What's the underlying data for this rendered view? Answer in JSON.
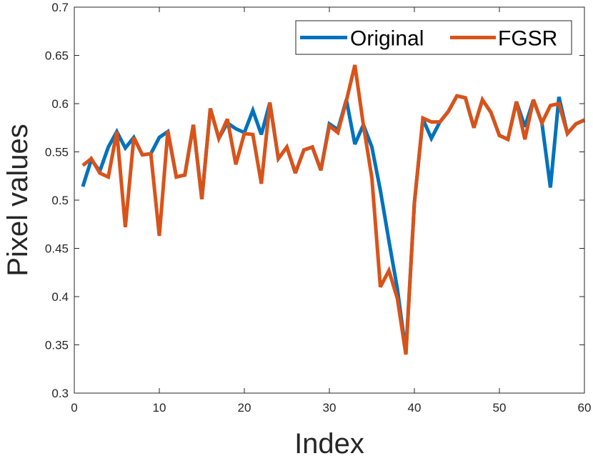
{
  "chart_data": {
    "type": "line",
    "title": "",
    "xlabel": "Index",
    "ylabel": "Pixel values",
    "xlim": [
      0,
      60
    ],
    "ylim": [
      0.3,
      0.7
    ],
    "xticks": [
      0,
      10,
      20,
      30,
      40,
      50,
      60
    ],
    "xtick_labels": [
      "0",
      "10",
      "20",
      "30",
      "40",
      "50",
      "60"
    ],
    "yticks": [
      0.3,
      0.35,
      0.4,
      0.45,
      0.5,
      0.55,
      0.6,
      0.65,
      0.7
    ],
    "ytick_labels": [
      "0.3",
      "0.35",
      "0.4",
      "0.45",
      "0.5",
      "0.55",
      "0.6",
      "0.65",
      "0.7"
    ],
    "grid": false,
    "legend_position": "top-right",
    "legend_orientation": "horizontal",
    "x": [
      1,
      2,
      3,
      4,
      5,
      6,
      7,
      8,
      9,
      10,
      11,
      12,
      13,
      14,
      15,
      16,
      17,
      18,
      19,
      20,
      21,
      22,
      23,
      24,
      25,
      26,
      27,
      28,
      29,
      30,
      31,
      32,
      33,
      34,
      35,
      36,
      37,
      38,
      39,
      40,
      41,
      42,
      43,
      44,
      45,
      46,
      47,
      48,
      49,
      50,
      51,
      52,
      53,
      54,
      55,
      56,
      57,
      58,
      59,
      60
    ],
    "series": [
      {
        "name": "Original",
        "color": "#0072BD",
        "values": [
          0.514,
          0.542,
          0.53,
          0.555,
          0.571,
          0.554,
          0.565,
          0.547,
          0.548,
          0.565,
          0.571,
          0.524,
          0.526,
          0.578,
          0.501,
          0.595,
          0.564,
          0.58,
          0.574,
          0.57,
          0.593,
          0.568,
          0.601,
          0.543,
          0.555,
          0.528,
          0.552,
          0.555,
          0.531,
          0.579,
          0.573,
          0.604,
          0.558,
          0.578,
          0.555,
          0.51,
          0.458,
          0.408,
          0.342,
          0.497,
          0.584,
          0.564,
          0.581,
          0.592,
          0.608,
          0.606,
          0.575,
          0.604,
          0.591,
          0.567,
          0.563,
          0.602,
          0.576,
          0.604,
          0.58,
          0.513,
          0.607,
          0.569,
          0.579,
          0.583
        ]
      },
      {
        "name": "FGSR",
        "color": "#D95319",
        "values": [
          0.536,
          0.543,
          0.528,
          0.524,
          0.571,
          0.472,
          0.565,
          0.547,
          0.548,
          0.463,
          0.572,
          0.524,
          0.526,
          0.578,
          0.501,
          0.595,
          0.564,
          0.584,
          0.537,
          0.569,
          0.568,
          0.517,
          0.601,
          0.543,
          0.555,
          0.528,
          0.552,
          0.555,
          0.531,
          0.577,
          0.57,
          0.603,
          0.64,
          0.578,
          0.523,
          0.41,
          0.427,
          0.398,
          0.34,
          0.497,
          0.585,
          0.581,
          0.581,
          0.592,
          0.608,
          0.606,
          0.575,
          0.604,
          0.591,
          0.567,
          0.563,
          0.602,
          0.563,
          0.604,
          0.58,
          0.598,
          0.6,
          0.569,
          0.579,
          0.583
        ]
      }
    ]
  }
}
